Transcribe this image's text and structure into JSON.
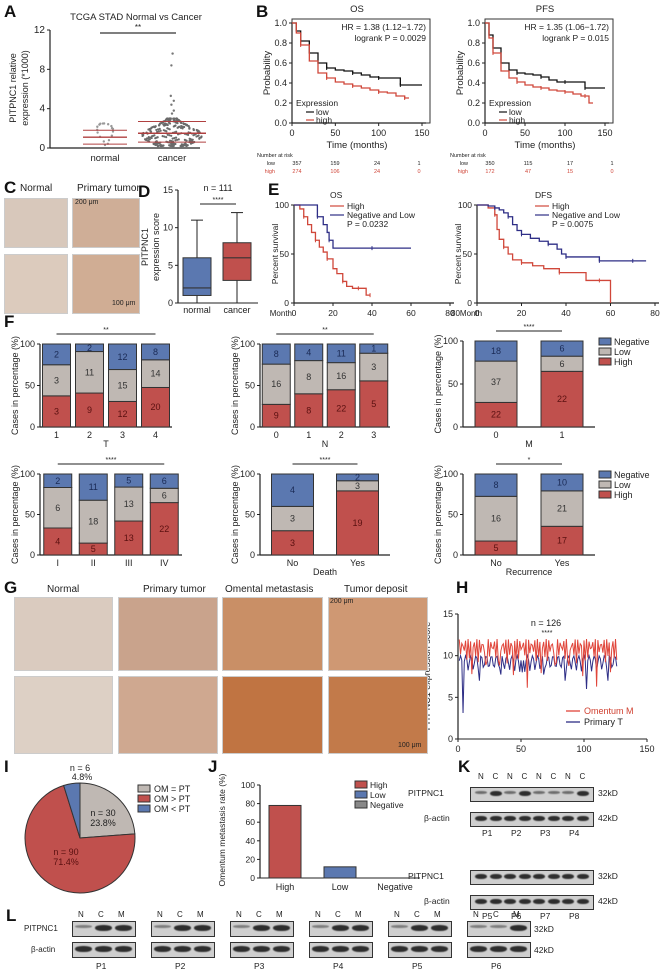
{
  "panels": {
    "A": {
      "label": "A"
    },
    "B": {
      "label": "B"
    },
    "C": {
      "label": "C"
    },
    "D": {
      "label": "D"
    },
    "E": {
      "label": "E"
    },
    "F": {
      "label": "F"
    },
    "G": {
      "label": "G"
    },
    "H": {
      "label": "H"
    },
    "I": {
      "label": "I"
    },
    "J": {
      "label": "J"
    },
    "K": {
      "label": "K"
    },
    "L": {
      "label": "L"
    }
  },
  "colors": {
    "high": "#c0504d",
    "low": "#bfb8b3",
    "negative": "#5b78b0",
    "km_low": "#111111",
    "km_high": "#d0473a",
    "navy": "#2e2e86"
  },
  "chart_data": [
    {
      "id": "A",
      "type": "scatter",
      "title": "TCGA STAD Normal vs Cancer",
      "ylabel": "PITPNC1 relative expression (*1000)",
      "categories": [
        "normal",
        "cancer"
      ],
      "yticks": [
        "0",
        "4",
        "8",
        "12"
      ],
      "ylim": [
        0,
        12
      ],
      "significance": "**",
      "summary": [
        {
          "name": "normal",
          "mean": 1.1,
          "sd_low": 0.4,
          "sd_high": 1.8
        },
        {
          "name": "cancer",
          "mean": 1.5,
          "sd_low": 0.6,
          "sd_high": 2.7
        }
      ],
      "outliers_cancer": [
        9.6,
        8.4,
        5.3,
        4.8,
        4.4,
        3.8,
        3.5
      ]
    },
    {
      "id": "B-OS",
      "type": "line",
      "title": "OS",
      "xlabel": "Time (months)",
      "ylabel": "Probability",
      "xticks": [
        "0",
        "50",
        "100",
        "150"
      ],
      "yticks": [
        "0.0",
        "0.2",
        "0.4",
        "0.6",
        "0.8",
        "1.0"
      ],
      "xlim": [
        0,
        150
      ],
      "ylim": [
        0,
        1
      ],
      "annotation": [
        "HR = 1.38 (1.12−1.72)",
        "logrank P = 0.0029"
      ],
      "legend_title": "Expression",
      "series": [
        {
          "name": "low",
          "x": [
            0,
            5,
            10,
            20,
            30,
            40,
            50,
            60,
            70,
            80,
            90,
            100,
            110,
            120,
            125,
            140,
            150
          ],
          "y": [
            1.0,
            0.92,
            0.82,
            0.7,
            0.6,
            0.55,
            0.53,
            0.52,
            0.5,
            0.48,
            0.46,
            0.45,
            0.45,
            0.45,
            0.38,
            0.38,
            0.38
          ]
        },
        {
          "name": "high",
          "x": [
            0,
            5,
            10,
            20,
            30,
            40,
            50,
            60,
            70,
            80,
            90,
            100,
            110,
            120,
            130,
            135
          ],
          "y": [
            1.0,
            0.9,
            0.78,
            0.62,
            0.5,
            0.45,
            0.41,
            0.39,
            0.37,
            0.35,
            0.33,
            0.31,
            0.3,
            0.27,
            0.25,
            0.25
          ]
        }
      ],
      "risk_table": {
        "title": "Number at risk",
        "rows": [
          {
            "name": "low",
            "values": [
              "357",
              "159",
              "24",
              "1"
            ]
          },
          {
            "name": "high",
            "values": [
              "274",
              "106",
              "24",
              "0"
            ]
          }
        ]
      }
    },
    {
      "id": "B-PFS",
      "type": "line",
      "title": "PFS",
      "xlabel": "Time (months)",
      "ylabel": "Probability",
      "xticks": [
        "0",
        "50",
        "100",
        "150"
      ],
      "yticks": [
        "0.0",
        "0.2",
        "0.4",
        "0.6",
        "0.8",
        "1.0"
      ],
      "xlim": [
        0,
        150
      ],
      "ylim": [
        0,
        1
      ],
      "annotation": [
        "HR = 1.35 (1.06−1.72)",
        "logrank P = 0.015"
      ],
      "legend_title": "Expression",
      "series": [
        {
          "name": "low",
          "x": [
            0,
            5,
            10,
            20,
            30,
            40,
            50,
            60,
            70,
            80,
            90,
            100,
            110,
            120,
            125,
            140,
            150
          ],
          "y": [
            1.0,
            0.88,
            0.75,
            0.6,
            0.53,
            0.5,
            0.49,
            0.48,
            0.46,
            0.43,
            0.41,
            0.41,
            0.41,
            0.41,
            0.35,
            0.35,
            0.35
          ]
        },
        {
          "name": "high",
          "x": [
            0,
            5,
            10,
            20,
            30,
            40,
            50,
            60,
            70,
            80,
            90,
            100,
            110,
            120,
            125,
            130,
            135
          ],
          "y": [
            1.0,
            0.85,
            0.7,
            0.52,
            0.45,
            0.41,
            0.38,
            0.36,
            0.35,
            0.33,
            0.32,
            0.31,
            0.29,
            0.27,
            0.27,
            0.2,
            0.2
          ]
        }
      ],
      "risk_table": {
        "title": "Number at risk",
        "rows": [
          {
            "name": "low",
            "values": [
              "350",
              "115",
              "17",
              "1"
            ]
          },
          {
            "name": "high",
            "values": [
              "172",
              "47",
              "15",
              "0"
            ]
          }
        ]
      }
    },
    {
      "id": "D",
      "type": "bar",
      "subtype": "boxplot",
      "ylabel": "PITPNC1 expression score",
      "categories": [
        "normal",
        "cancer"
      ],
      "yticks": [
        "0",
        "5",
        "10",
        "15"
      ],
      "ylim": [
        0,
        15
      ],
      "n_label": "n = 111",
      "significance": "****",
      "boxes": [
        {
          "name": "normal",
          "min": 0,
          "q1": 1,
          "median": 2,
          "q3": 6,
          "max": 11
        },
        {
          "name": "cancer",
          "min": 0,
          "q1": 3,
          "median": 6,
          "q3": 8,
          "max": 12
        }
      ]
    },
    {
      "id": "E-OS",
      "type": "line",
      "title": "OS",
      "xlabel": "Month",
      "ylabel": "Percent survival",
      "xticks": [
        "0",
        "20",
        "40",
        "60",
        "80"
      ],
      "yticks": [
        "0",
        "50",
        "100"
      ],
      "xlim": [
        0,
        80
      ],
      "ylim": [
        0,
        100
      ],
      "p_value": "P = 0.0232",
      "series": [
        {
          "name": "High",
          "x": [
            0,
            3,
            5,
            7,
            9,
            11,
            13,
            15,
            17,
            20,
            22,
            25,
            27,
            30,
            33,
            36,
            37,
            39
          ],
          "y": [
            100,
            96,
            88,
            80,
            72,
            64,
            57,
            52,
            45,
            35,
            30,
            22,
            17,
            15,
            15,
            15,
            8,
            8
          ]
        },
        {
          "name": "Negative and Low",
          "x": [
            0,
            6,
            12,
            15,
            17,
            18,
            20,
            25,
            40,
            60
          ],
          "y": [
            100,
            100,
            88,
            80,
            72,
            64,
            56,
            56,
            56,
            56
          ]
        }
      ]
    },
    {
      "id": "E-DFS",
      "type": "line",
      "title": "DFS",
      "xlabel": "Month",
      "ylabel": "Percent survival",
      "xticks": [
        "0",
        "20",
        "40",
        "60",
        "80"
      ],
      "yticks": [
        "0",
        "50",
        "100"
      ],
      "xlim": [
        0,
        80
      ],
      "ylim": [
        0,
        100
      ],
      "p_value": "P = 0.0075",
      "series": [
        {
          "name": "High",
          "x": [
            0,
            5,
            8,
            9,
            10,
            12,
            14,
            16,
            20,
            25,
            30,
            37,
            40,
            49,
            55,
            60,
            60
          ],
          "y": [
            100,
            97,
            90,
            75,
            65,
            57,
            50,
            44,
            41,
            38,
            35,
            31,
            31,
            23,
            23,
            23,
            0
          ]
        },
        {
          "name": "Negative and Low",
          "x": [
            0,
            5,
            8,
            10,
            12,
            14,
            16,
            18,
            20,
            24,
            28,
            32,
            36,
            38,
            40,
            45,
            50,
            55,
            60,
            65,
            70,
            76
          ],
          "y": [
            100,
            99,
            97,
            95,
            92,
            88,
            80,
            74,
            70,
            66,
            63,
            60,
            55,
            50,
            47,
            47,
            47,
            43,
            43,
            43,
            43,
            43
          ]
        }
      ]
    },
    {
      "id": "F-T",
      "type": "bar",
      "subtype": "stacked-percent",
      "xlabel": "T",
      "ylabel": "Cases in percentage (%)",
      "yticks": [
        "0",
        "50",
        "100"
      ],
      "ylim": [
        0,
        100
      ],
      "significance": "**",
      "categories": [
        "1",
        "2",
        "3",
        "4"
      ],
      "series": [
        {
          "name": "High",
          "values": [
            3,
            9,
            12,
            20
          ]
        },
        {
          "name": "Low",
          "values": [
            3,
            11,
            15,
            14
          ]
        },
        {
          "name": "Negative",
          "values": [
            2,
            2,
            12,
            8
          ]
        }
      ]
    },
    {
      "id": "F-N",
      "type": "bar",
      "subtype": "stacked-percent",
      "xlabel": "N",
      "ylabel": "Cases in percentage (%)",
      "yticks": [
        "0",
        "50",
        "100"
      ],
      "ylim": [
        0,
        100
      ],
      "significance": "**",
      "categories": [
        "0",
        "1",
        "2",
        "3"
      ],
      "series": [
        {
          "name": "High",
          "values": [
            9,
            8,
            22,
            5
          ]
        },
        {
          "name": "Low",
          "values": [
            16,
            8,
            16,
            3
          ]
        },
        {
          "name": "Negative",
          "values": [
            8,
            4,
            11,
            1
          ]
        }
      ]
    },
    {
      "id": "F-M",
      "type": "bar",
      "subtype": "stacked-percent",
      "xlabel": "M",
      "ylabel": "Cases in percentage (%)",
      "yticks": [
        "0",
        "50",
        "100"
      ],
      "ylim": [
        0,
        100
      ],
      "significance": "****",
      "categories": [
        "0",
        "1"
      ],
      "legend": [
        "Negative",
        "Low",
        "High"
      ],
      "series": [
        {
          "name": "High",
          "values": [
            22,
            22
          ]
        },
        {
          "name": "Low",
          "values": [
            37,
            6
          ]
        },
        {
          "name": "Negative",
          "values": [
            18,
            6
          ]
        }
      ]
    },
    {
      "id": "F-Stage",
      "type": "bar",
      "subtype": "stacked-percent",
      "xlabel": "",
      "ylabel": "Cases in percentage (%)",
      "yticks": [
        "0",
        "50",
        "100"
      ],
      "ylim": [
        0,
        100
      ],
      "significance": "****",
      "categories": [
        "I",
        "II",
        "III",
        "IV"
      ],
      "series": [
        {
          "name": "High",
          "values": [
            4,
            5,
            13,
            22
          ]
        },
        {
          "name": "Low",
          "values": [
            6,
            18,
            13,
            6
          ]
        },
        {
          "name": "Negative",
          "values": [
            2,
            11,
            5,
            6
          ]
        }
      ]
    },
    {
      "id": "F-Death",
      "type": "bar",
      "subtype": "stacked-percent",
      "xlabel": "Death",
      "ylabel": "Cases in percentage (%)",
      "yticks": [
        "0",
        "50",
        "100"
      ],
      "ylim": [
        0,
        100
      ],
      "significance": "****",
      "categories": [
        "No",
        "Yes"
      ],
      "series": [
        {
          "name": "High",
          "values": [
            3,
            19
          ]
        },
        {
          "name": "Low",
          "values": [
            3,
            3
          ]
        },
        {
          "name": "Negative",
          "values": [
            4,
            2
          ]
        }
      ]
    },
    {
      "id": "F-Recurrence",
      "type": "bar",
      "subtype": "stacked-percent",
      "xlabel": "Recurrence",
      "ylabel": "Cases in percentage (%)",
      "yticks": [
        "0",
        "50",
        "100"
      ],
      "ylim": [
        0,
        100
      ],
      "significance": "*",
      "categories": [
        "No",
        "Yes"
      ],
      "legend": [
        "Negative",
        "Low",
        "High"
      ],
      "series": [
        {
          "name": "High",
          "values": [
            5,
            17
          ]
        },
        {
          "name": "Low",
          "values": [
            16,
            21
          ]
        },
        {
          "name": "Negative",
          "values": [
            8,
            10
          ]
        }
      ]
    },
    {
      "id": "H",
      "type": "line",
      "ylabel": "PITPNC1 expression score",
      "xticks": [
        "0",
        "50",
        "100",
        "150"
      ],
      "yticks": [
        "0",
        "5",
        "10",
        "15"
      ],
      "xlim": [
        0,
        150
      ],
      "ylim": [
        0,
        15
      ],
      "n_label": "n = 126",
      "significance": "****",
      "legend": [
        "Omentum M",
        "Primary T"
      ]
    },
    {
      "id": "I",
      "type": "pie",
      "legend": [
        "OM = PT",
        "OM > PT",
        "OM < PT"
      ],
      "slices": [
        {
          "name": "OM = PT",
          "n": "n = 30",
          "percent": "23.8%",
          "value": 23.8
        },
        {
          "name": "OM > PT",
          "n": "n = 90",
          "percent": "71.4%",
          "value": 71.4
        },
        {
          "name": "OM < PT",
          "n": "n = 6",
          "percent": "4.8%",
          "value": 4.8
        }
      ]
    },
    {
      "id": "J",
      "type": "bar",
      "ylabel": "Omentum metastasis rate (%)",
      "categories": [
        "High",
        "Low",
        "Negative"
      ],
      "values": [
        78,
        12,
        0
      ],
      "yticks": [
        "0",
        "20",
        "40",
        "60",
        "80",
        "100"
      ],
      "ylim": [
        0,
        100
      ],
      "legend": [
        "High",
        "Low",
        "Negative"
      ]
    }
  ],
  "C": {
    "titles": [
      "Normal",
      "Primary tumor"
    ],
    "scale_top": "200 μm",
    "scale_bottom": "100 μm"
  },
  "G": {
    "titles": [
      "Normal",
      "Primary tumor",
      "Omental metastasis",
      "Tumor deposit"
    ],
    "scale_top": "200 μm",
    "scale_bottom": "100 μm"
  },
  "K": {
    "lane_labels": [
      "N",
      "C",
      "N",
      "C",
      "N",
      "C",
      "N",
      "C"
    ],
    "rows": [
      "PITPNC1",
      "β-actin",
      "PITPNC1",
      "β-actin"
    ],
    "sizes": [
      "32kD",
      "42kD",
      "32kD",
      "42kD"
    ],
    "patients_top": [
      "P1",
      "P2",
      "P3",
      "P4"
    ],
    "patients_bottom": [
      "P5",
      "P6",
      "P7",
      "P8"
    ]
  },
  "L": {
    "lane_labels": [
      "N",
      "C",
      "M"
    ],
    "rows": [
      "PITPNC1",
      "β-actin"
    ],
    "sizes": [
      "32kD",
      "42kD"
    ],
    "patients": [
      "P1",
      "P2",
      "P3",
      "P4",
      "P5",
      "P6"
    ]
  }
}
